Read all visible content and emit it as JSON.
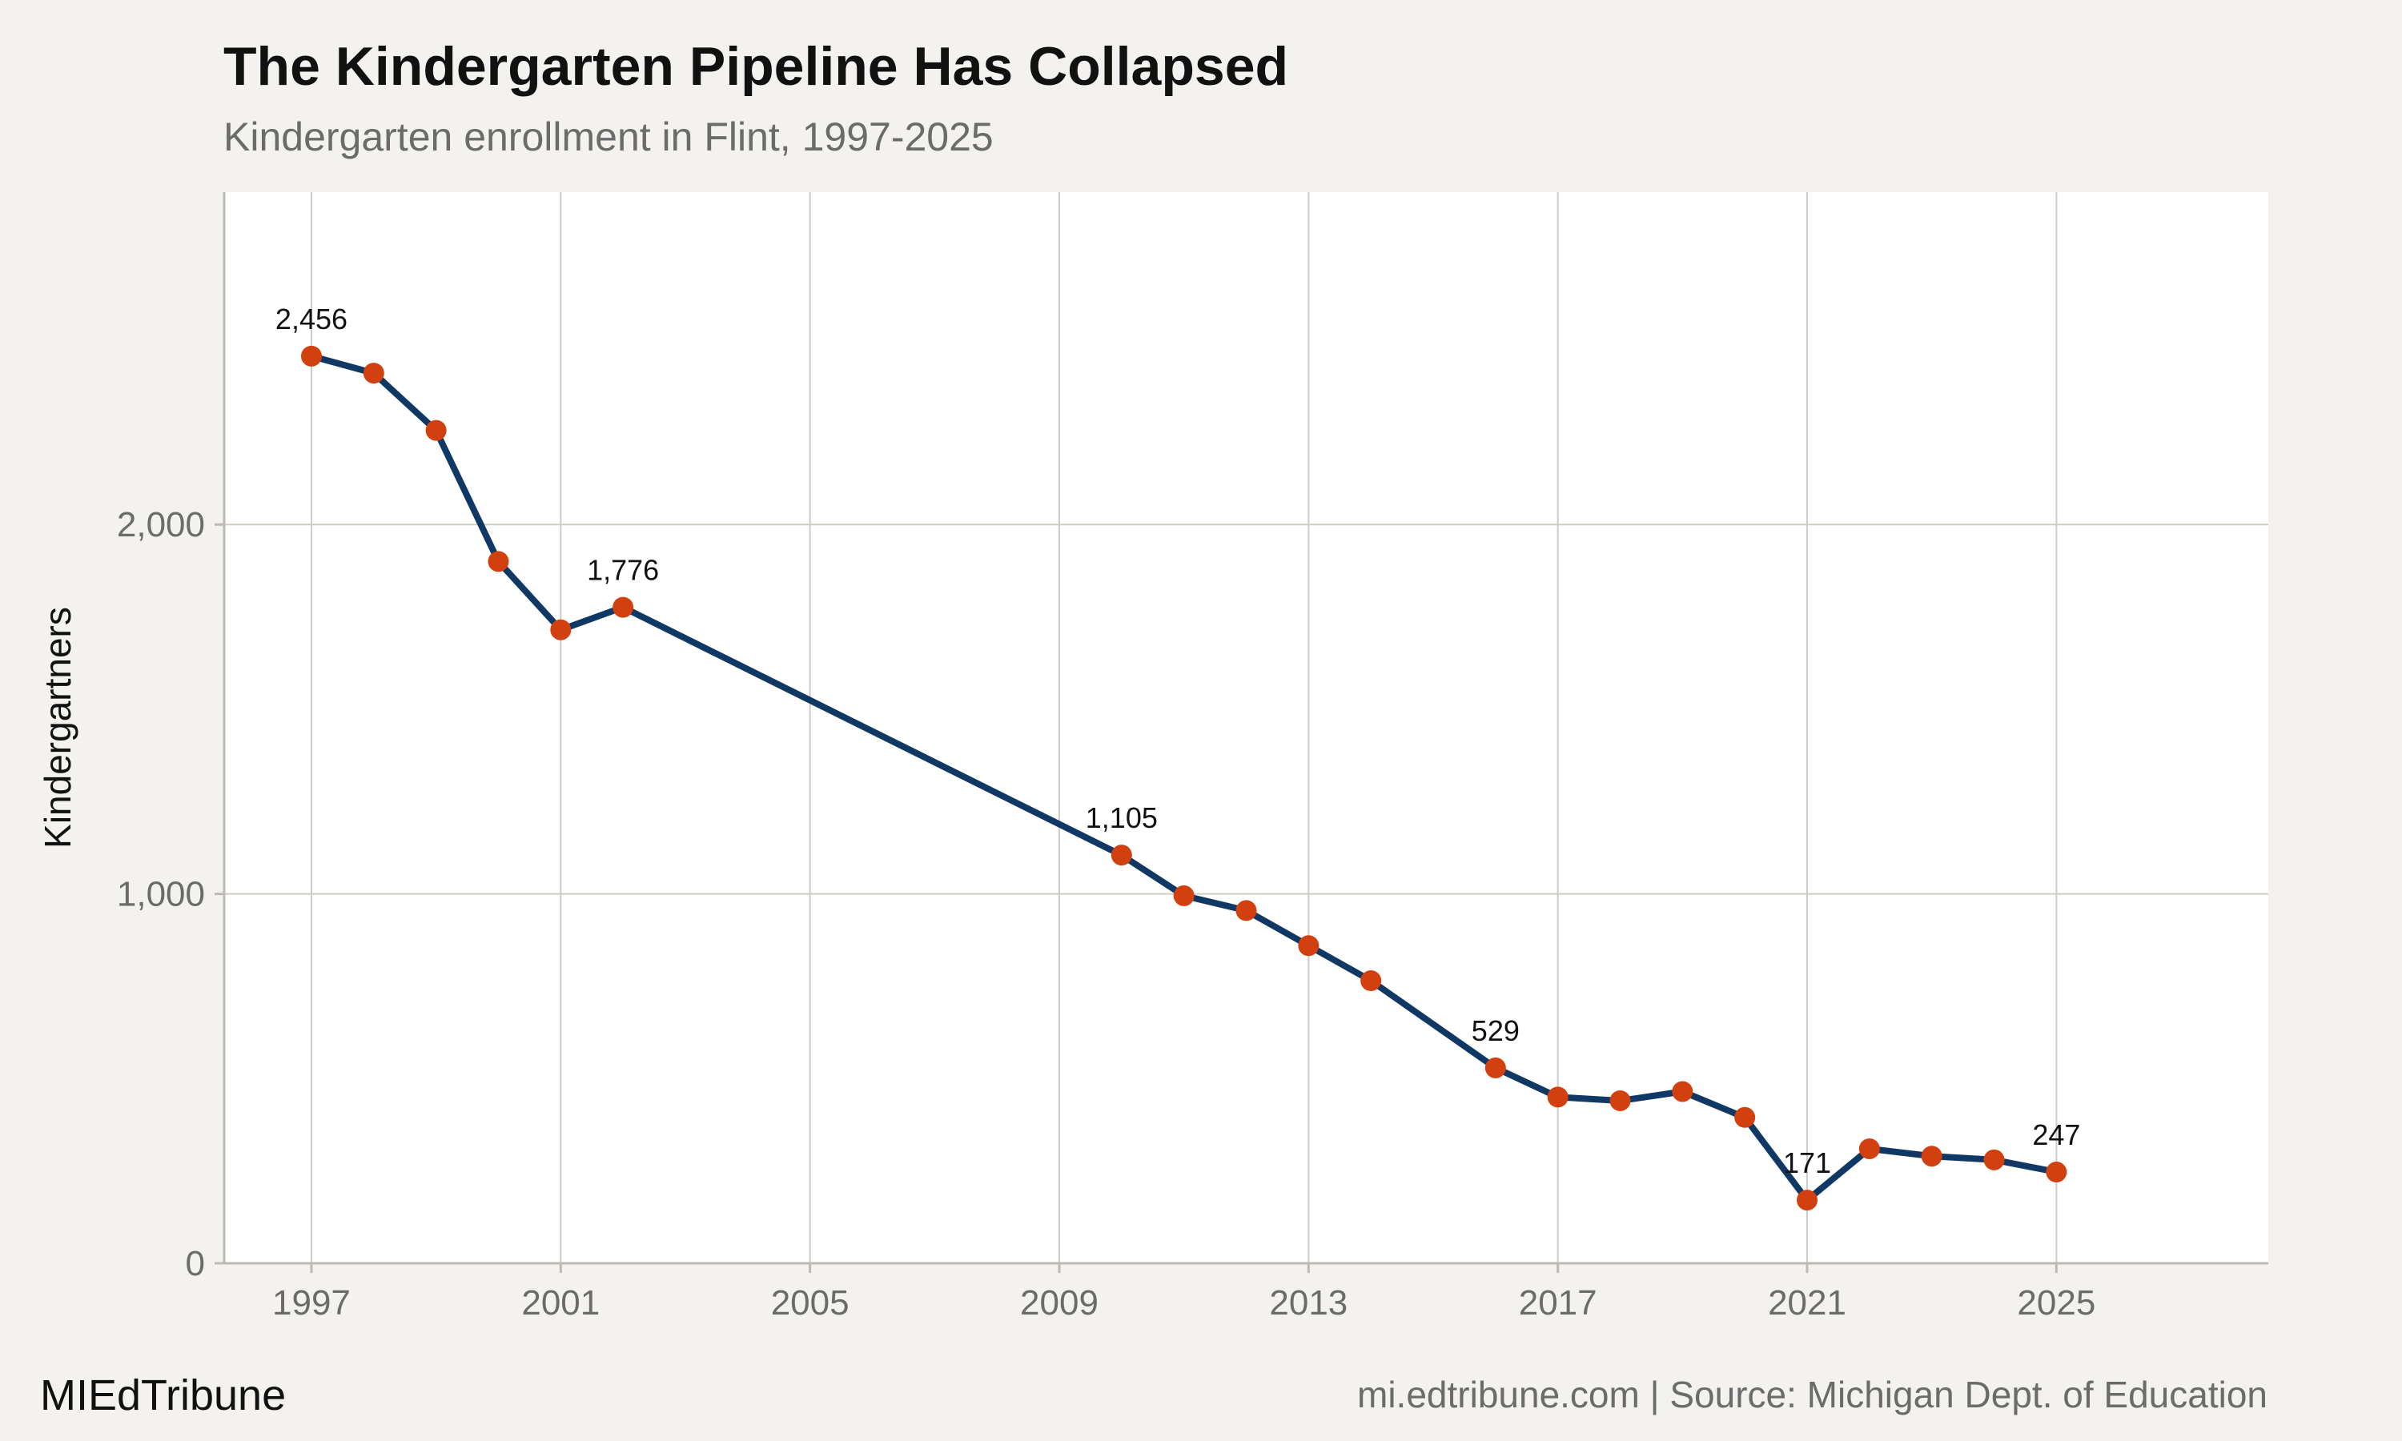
{
  "title": "The Kindergarten Pipeline Has Collapsed",
  "subtitle": "Kindergarten enrollment in Flint, 1997-2025",
  "branding": "MIEdTribune",
  "source": "mi.edtribune.com | Source: Michigan Dept. of Education",
  "colors": {
    "line": "#0f3864",
    "point": "#d3400f",
    "panel": "#ffffff",
    "background": "#f4f2ee",
    "grid": "#cfccc6"
  },
  "chart_data": {
    "type": "line",
    "title": "The Kindergarten Pipeline Has Collapsed",
    "subtitle": "Kindergarten enrollment in Flint, 1997-2025",
    "xlabel": "",
    "ylabel": "Kindergartners",
    "xlim": [
      1995.6,
      2028.4
    ],
    "ylim": [
      0,
      2900
    ],
    "x_ticks": [
      1997,
      2001,
      2005,
      2009,
      2013,
      2017,
      2021,
      2025
    ],
    "y_ticks": [
      0,
      1000,
      2000
    ],
    "y_tick_labels": [
      "0",
      "1,000",
      "2,000"
    ],
    "grid": true,
    "series": [
      {
        "x": [
          1997,
          1998,
          1999,
          2000,
          2001,
          2002,
          2010,
          2011,
          2012,
          2013,
          2014,
          2016,
          2017,
          2018,
          2019,
          2020,
          2021,
          2022,
          2023,
          2024,
          2025
        ],
        "y": [
          2456,
          2410,
          2255,
          1900,
          1715,
          1776,
          1105,
          995,
          955,
          860,
          765,
          529,
          450,
          440,
          465,
          395,
          171,
          310,
          290,
          280,
          247
        ]
      }
    ],
    "annotations": [
      {
        "x": 1997,
        "y": 2456,
        "text": "2,456"
      },
      {
        "x": 2002,
        "y": 1776,
        "text": "1,776"
      },
      {
        "x": 2010,
        "y": 1105,
        "text": "1,105"
      },
      {
        "x": 2016,
        "y": 529,
        "text": "529"
      },
      {
        "x": 2021,
        "y": 171,
        "text": "171"
      },
      {
        "x": 2025,
        "y": 247,
        "text": "247"
      }
    ]
  }
}
